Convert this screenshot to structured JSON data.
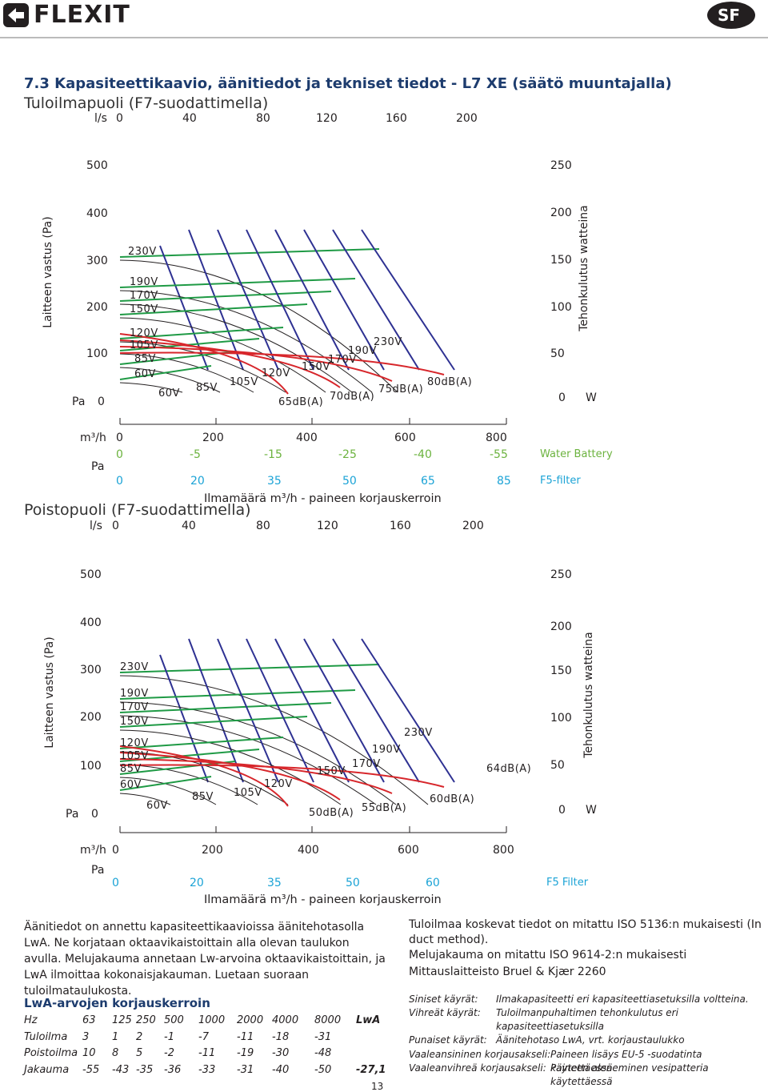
{
  "header": {
    "brand": "FLEXIT",
    "lang": "SF"
  },
  "section_title": "7.3  Kapasiteettikaavio, äänitiedot ja tekniset tiedot - L7 XE (säätö muuntajalla)",
  "supply_chart": {
    "subtitle": "Tuloilmapuoli (F7-suodattimella)",
    "ls_label": "l/s",
    "ls_ticks": [
      "0",
      "40",
      "80",
      "120",
      "160",
      "200"
    ],
    "pa_ticks": [
      "500",
      "400",
      "300",
      "200",
      "100",
      "0"
    ],
    "pa_label": "Pa",
    "y_title": "Laitteen vastus (Pa)",
    "w_ticks": [
      "250",
      "200",
      "150",
      "100",
      "50",
      "0"
    ],
    "w_label": "W",
    "y2_title": "Tehonkulutus watteina",
    "fan_labels": [
      "230V",
      "190V",
      "170V",
      "150V",
      "120V",
      "105V",
      "85V",
      "60V"
    ],
    "end_labels": [
      "60V",
      "85V",
      "105V",
      "120V",
      "150V",
      "170V",
      "190V",
      "230V"
    ],
    "db_labels": [
      "65dB(A)",
      "70dB(A)",
      "75dB(A)",
      "80dB(A)"
    ],
    "m3h_label": "m³/h",
    "m3h_ticks": [
      "0",
      "200",
      "400",
      "600",
      "800"
    ],
    "corr_pa_label": "Pa",
    "water_battery_row": [
      "0",
      "-5",
      "-15",
      "-25",
      "-40",
      "-55"
    ],
    "water_battery_label": "Water Battery",
    "f5_row": [
      "0",
      "20",
      "35",
      "50",
      "65",
      "85"
    ],
    "f5_label": "F5-filter",
    "x_title": "Ilmamäärä m³/h - paineen korjauskerroin"
  },
  "exhaust_chart": {
    "subtitle": "Poistopuoli (F7-suodattimella)",
    "ls_label": "l/s",
    "ls_ticks": [
      "0",
      "40",
      "80",
      "120",
      "160",
      "200"
    ],
    "pa_ticks": [
      "500",
      "400",
      "300",
      "200",
      "100",
      "0"
    ],
    "pa_label": "Pa",
    "y_title": "Laitteen vastus (Pa)",
    "w_ticks": [
      "250",
      "200",
      "150",
      "100",
      "50",
      "0"
    ],
    "w_label": "W",
    "y2_title": "Tehonkulutus watteina",
    "fan_labels": [
      "230V",
      "190V",
      "170V",
      "150V",
      "120V",
      "105V",
      "85V",
      "60V"
    ],
    "end_labels": [
      "60V",
      "85V",
      "105V",
      "120V",
      "150V",
      "170V",
      "190V",
      "230V"
    ],
    "db_labels": [
      "50dB(A)",
      "55dB(A)",
      "60dB(A)",
      "64dB(A)"
    ],
    "m3h_label": "m³/h",
    "m3h_ticks": [
      "0",
      "200",
      "400",
      "600",
      "800"
    ],
    "corr_pa_label": "Pa",
    "f5_row": [
      "0",
      "20",
      "35",
      "50",
      "60"
    ],
    "f5_label": "F5 Filter",
    "x_title": "Ilmamäärä m³/h - paineen korjauskerroin"
  },
  "sound_text": "Äänitiedot on annettu kapasiteettikaavioissa äänitehotasolla LwA. Ne korjataan oktaavikaistoittain alla olevan taulukon avulla. Melujakauma annetaan Lw-arvoina oktaavikaistoittain, ja LwA ilmoittaa kokonaisjakauman. Luetaan suoraan tuloilmataulukosta.",
  "table": {
    "title": "LwA-arvojen korjauskerroin",
    "rows": [
      [
        "Hz",
        "63",
        "125",
        "250",
        "500",
        "1000",
        "2000",
        "4000",
        "8000",
        "LwA"
      ],
      [
        "Tuloilma",
        "3",
        "1",
        "2",
        "-1",
        "-7",
        "-11",
        "-18",
        "-31",
        ""
      ],
      [
        "Poistoilma",
        "10",
        "8",
        "5",
        "-2",
        "-11",
        "-19",
        "-30",
        "-48",
        ""
      ],
      [
        "Jakauma",
        "-55",
        "-43",
        "-35",
        "-36",
        "-33",
        "-31",
        "-40",
        "-50",
        "-27,1"
      ]
    ]
  },
  "right_text": [
    "Tuloilmaa koskevat tiedot on mitattu ISO 5136:n mukaisesti (In duct method).",
    "Melujakauma on mitattu ISO 9614-2:n mukaisesti",
    "Mittauslaitteisto Bruel & Kjær 2260"
  ],
  "legend": [
    [
      "Siniset käyrät:",
      "Ilmakapasiteetti eri kapasiteettiasetuksilla voltteina."
    ],
    [
      "Vihreät käyrät:",
      "Tuloilmanpuhaltimen tehonkulutus eri kapasiteettiasetuksilla"
    ],
    [
      "Punaiset käyrät:",
      "Äänitehotaso LwA, vrt. korjaustaulukko"
    ],
    [
      "Vaaleansininen korjausakseli:",
      "Paineen lisäys EU-5 -suodatinta käytettäessä"
    ],
    [
      "Vaaleanvihreä korjausakseli:",
      "Paineen aleneminen vesipatteria käytettäessä"
    ]
  ],
  "page_number": "13"
}
